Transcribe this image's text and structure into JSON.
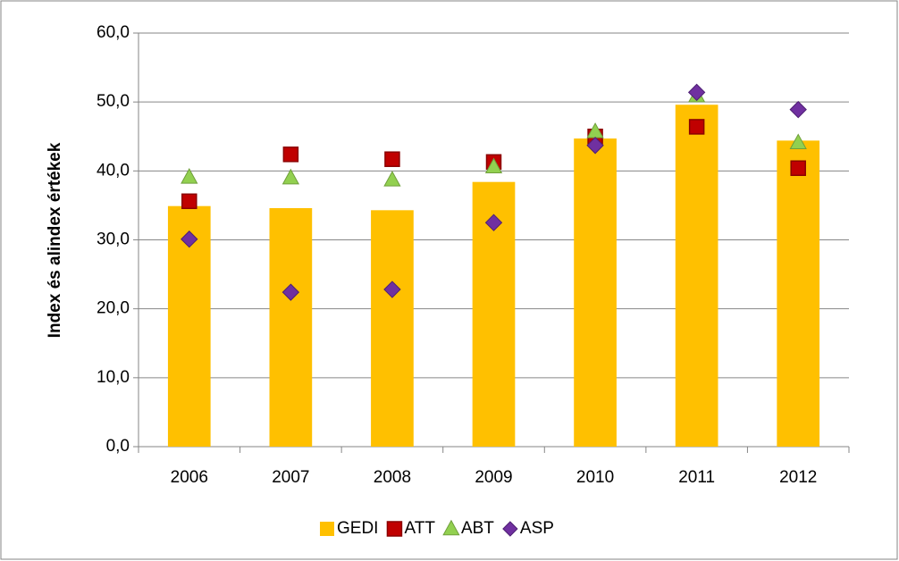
{
  "chart_data": {
    "type": "bar_markers",
    "y_axis_label": "Index és alindex értékek",
    "categories": [
      "2006",
      "2007",
      "2008",
      "2009",
      "2010",
      "2011",
      "2012"
    ],
    "series": [
      {
        "name": "GEDI",
        "color": "#ffc000",
        "marker": "bar",
        "values": [
          34.9,
          34.6,
          34.3,
          38.4,
          44.7,
          49.6,
          44.4
        ]
      },
      {
        "name": "ATT",
        "color": "#c00000",
        "marker": "square",
        "values": [
          35.6,
          42.4,
          41.7,
          41.3,
          45.0,
          46.4,
          40.4
        ]
      },
      {
        "name": "ABT",
        "color": "#92d050",
        "marker": "triangle",
        "values": [
          39.1,
          39.0,
          38.7,
          40.6,
          45.7,
          50.9,
          44.1
        ]
      },
      {
        "name": "ASP",
        "color": "#7030a0",
        "marker": "diamond",
        "values": [
          30.1,
          22.4,
          22.8,
          32.5,
          43.7,
          51.4,
          48.9
        ]
      }
    ],
    "ylim": [
      0,
      60
    ],
    "yticks": [
      {
        "value": 0,
        "label": "0,0"
      },
      {
        "value": 10,
        "label": "10,0"
      },
      {
        "value": 20,
        "label": "20,0"
      },
      {
        "value": 30,
        "label": "30,0"
      },
      {
        "value": 40,
        "label": "40,0"
      },
      {
        "value": 50,
        "label": "50,0"
      },
      {
        "value": 60,
        "label": "60,0"
      }
    ],
    "grid": true,
    "legend": "bottom"
  }
}
